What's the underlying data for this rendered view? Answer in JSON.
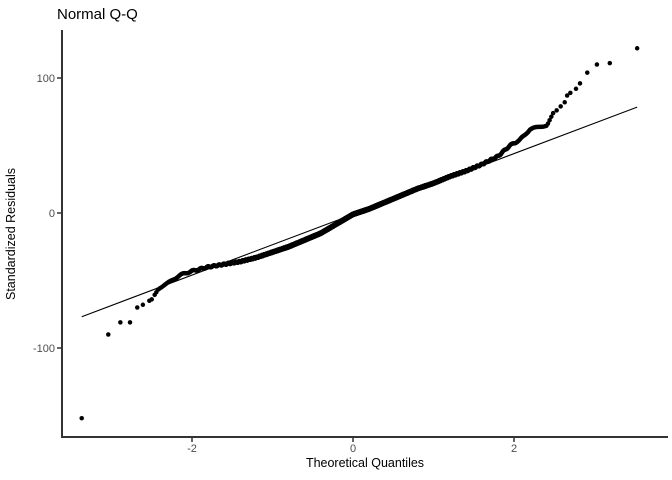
{
  "chart_data": {
    "type": "scatter",
    "subtype": "normal-qq-plot",
    "title": "Normal Q-Q",
    "xlabel": "Theoretical Quantiles",
    "ylabel": "Standardized Residuals",
    "x_ticks": [
      -2,
      0,
      2
    ],
    "y_ticks": [
      -100,
      0,
      100
    ],
    "xlim": [
      -3.62,
      3.92
    ],
    "ylim": [
      -166,
      136
    ],
    "grid": "off",
    "legend": "none",
    "point_color": "#000000",
    "line_color": "#000000",
    "axis_color": "#333333",
    "tick_label_color": "#4d4d4d",
    "reference_line": {
      "slope": 22.5,
      "intercept": -1,
      "x_start": -3.37,
      "x_end": 3.53
    },
    "lower_tail_points": [
      [
        -3.37,
        -152
      ],
      [
        -3.04,
        -90
      ],
      [
        -2.89,
        -81
      ],
      [
        -2.77,
        -81
      ],
      [
        -2.68,
        -70
      ],
      [
        -2.61,
        -68
      ],
      [
        -2.53,
        -65
      ],
      [
        -2.5,
        -64
      ]
    ],
    "upper_tail_points": [
      [
        2.53,
        76
      ],
      [
        2.58,
        79
      ],
      [
        2.63,
        82
      ],
      [
        2.66,
        87
      ],
      [
        2.7,
        89
      ],
      [
        2.77,
        92
      ],
      [
        2.82,
        96
      ],
      [
        2.91,
        104
      ],
      [
        3.03,
        110
      ],
      [
        3.19,
        111
      ],
      [
        3.53,
        122
      ]
    ],
    "band": {
      "n": 2400,
      "q_min": -2.48,
      "q_max": 2.49,
      "control_points": [
        [
          -2.48,
          -62
        ],
        [
          -2.42,
          -56
        ],
        [
          -2.3,
          -52
        ],
        [
          -2.15,
          -46
        ],
        [
          -2.0,
          -43
        ],
        [
          -1.8,
          -40
        ],
        [
          -1.6,
          -38
        ],
        [
          -1.4,
          -36
        ],
        [
          -1.2,
          -33
        ],
        [
          -1.0,
          -29
        ],
        [
          -0.8,
          -25
        ],
        [
          -0.6,
          -20
        ],
        [
          -0.4,
          -15
        ],
        [
          -0.2,
          -8
        ],
        [
          0.0,
          -1
        ],
        [
          0.2,
          3
        ],
        [
          0.4,
          8
        ],
        [
          0.6,
          13
        ],
        [
          0.8,
          18
        ],
        [
          1.0,
          22
        ],
        [
          1.2,
          27
        ],
        [
          1.4,
          31
        ],
        [
          1.6,
          36
        ],
        [
          1.8,
          42
        ],
        [
          1.95,
          50
        ],
        [
          2.07,
          54
        ],
        [
          2.2,
          62
        ],
        [
          2.32,
          64
        ],
        [
          2.41,
          65
        ],
        [
          2.49,
          74
        ]
      ]
    }
  }
}
